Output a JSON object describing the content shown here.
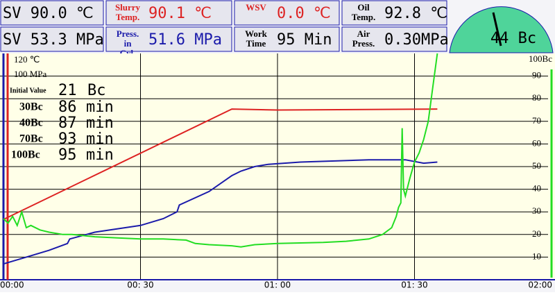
{
  "header": {
    "row1": [
      {
        "text": "SV 90.0 ℃"
      },
      {
        "label": "Slurry Temp.",
        "text": "90.1 ℃"
      },
      {
        "label": "WSV",
        "text": "0.0 ℃"
      },
      {
        "label": "Oil Temp.",
        "text": "92.8 ℃"
      }
    ],
    "row2": [
      {
        "text": "SV 53.3 MPa"
      },
      {
        "label": "Press. in Cyl.",
        "text": "51.6 MPa"
      },
      {
        "label": "Work Time",
        "text": "95 Min"
      },
      {
        "label": "Air Press.",
        "text": "0.30MPa"
      }
    ]
  },
  "gauge": {
    "text": "44 Bc"
  },
  "chart_data": {
    "type": "line",
    "xlim": [
      0,
      120
    ],
    "xticks": [
      {
        "value": 0,
        "label": "00:00"
      },
      {
        "value": 30,
        "label": "00: 30"
      },
      {
        "value": 60,
        "label": "01: 00"
      },
      {
        "value": 90,
        "label": "01: 30"
      },
      {
        "value": 120,
        "label": "02:00"
      }
    ],
    "ylim": [
      0,
      100
    ],
    "yticks": [
      10,
      20,
      30,
      40,
      50,
      60,
      70,
      80,
      90,
      {
        "value": 100,
        "label": "100Bc"
      }
    ],
    "grid": true,
    "annotations": {
      "initial": {
        "label": "Initial Value",
        "value": "21",
        "unit": "Bc"
      },
      "thickening": [
        {
          "label": "30Bc",
          "value": "86",
          "unit": "min"
        },
        {
          "label": "40Bc",
          "value": "87",
          "unit": "min"
        },
        {
          "label": "70Bc",
          "value": "93",
          "unit": "min"
        },
        {
          "label": "100Bc",
          "value": "95",
          "unit": "min"
        }
      ]
    },
    "series": [
      {
        "color": "#dd2222",
        "ylim": [
          0,
          120
        ],
        "yticks": [
          {
            "value": 120,
            "label": "120 ℃"
          }
        ],
        "x": [
          0,
          50,
          60,
          95
        ],
        "values": [
          32,
          90.5,
          90,
          90.5
        ]
      },
      {
        "color": "#1a1aaa",
        "ylim": [
          0,
          100
        ],
        "yticks": [
          {
            "value": 100,
            "label": "100 MPa"
          }
        ],
        "x": [
          0,
          5,
          10,
          14,
          14.5,
          20,
          30,
          35,
          38,
          38.5,
          45,
          50,
          52,
          55,
          58,
          65,
          80,
          88,
          92,
          95
        ],
        "values": [
          7,
          10,
          13,
          16,
          18,
          21,
          24,
          27,
          30,
          33,
          39,
          46,
          48,
          50,
          51,
          52,
          53,
          53,
          51.5,
          52
        ]
      },
      {
        "color": "#22dd22",
        "ylim": [
          0,
          100
        ],
        "x": [
          0,
          1,
          2,
          3,
          4,
          5,
          6,
          8,
          10,
          13,
          15,
          20,
          25,
          30,
          35,
          40,
          42,
          45,
          50,
          52,
          55,
          60,
          70,
          75,
          80,
          83,
          85,
          86,
          86.5,
          87,
          87.3,
          87.6,
          88,
          89,
          90,
          91,
          92,
          93,
          94,
          95
        ],
        "values": [
          27,
          25,
          28,
          24,
          30,
          23,
          24,
          22,
          21,
          20,
          20,
          19,
          18.5,
          18,
          18,
          17.5,
          16,
          15.5,
          15,
          14.5,
          15.5,
          16,
          16.5,
          17,
          18,
          20,
          23,
          28,
          32,
          34,
          67,
          40,
          37,
          45,
          52,
          56,
          62,
          70,
          85,
          100
        ]
      }
    ]
  }
}
